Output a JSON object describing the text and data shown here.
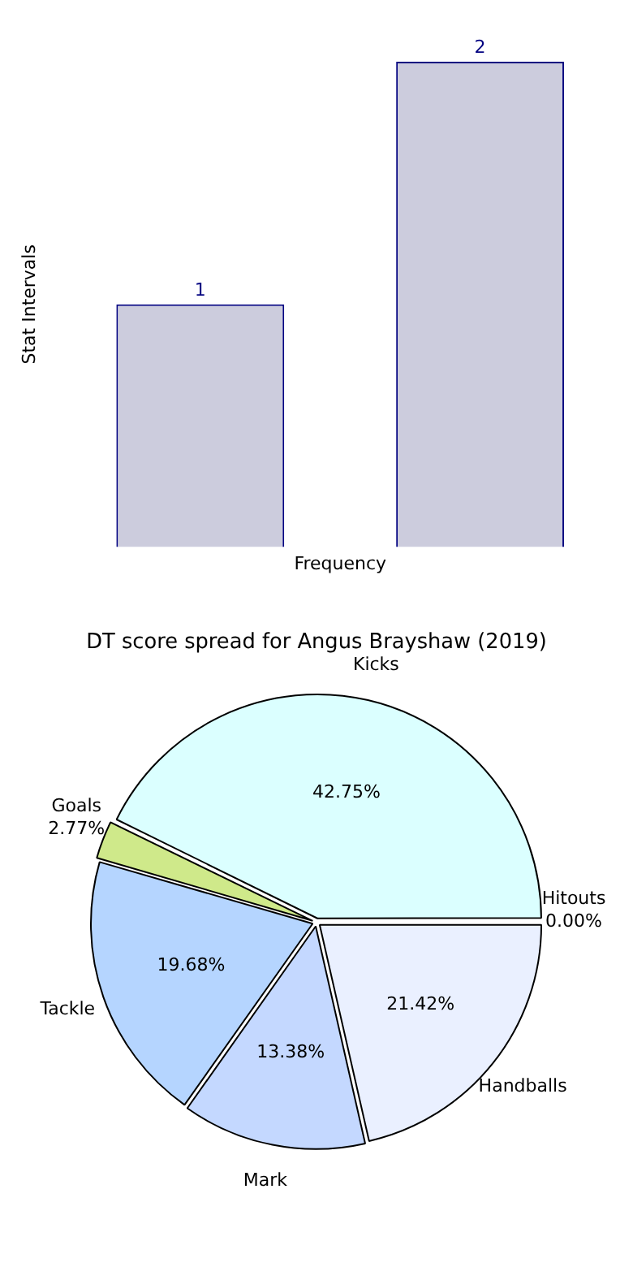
{
  "chart_data": [
    {
      "type": "bar",
      "xlabel": "Frequency",
      "ylabel": "Stat Intervals",
      "categories": [
        null,
        null
      ],
      "values": [
        1,
        2
      ],
      "color": "#ccccdd",
      "data_labels": true,
      "tick_labels": false,
      "grid": false,
      "legend": false
    },
    {
      "type": "pie",
      "title": "DT score spread for Angus Brayshaw (2019)",
      "categories": [
        "Handballs",
        "Mark",
        "Tackle",
        "Goals",
        "Kicks",
        "Hitouts"
      ],
      "values": [
        21.42,
        13.38,
        19.68,
        2.77,
        42.75,
        0.0
      ],
      "value_labels": [
        "21.42%",
        "13.38%",
        "19.68%",
        "2.77%",
        "42.75%",
        "0.00%"
      ],
      "colors": [
        "#eaf0ff",
        "#c4d8ff",
        "#b5d5ff",
        "#cfe98a",
        "#dbffff",
        "#e6e6e6"
      ],
      "legend": false
    }
  ]
}
